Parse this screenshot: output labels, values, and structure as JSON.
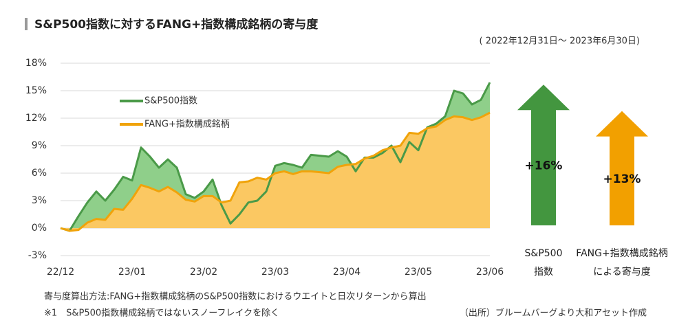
{
  "chart_data": [
    {
      "type": "line",
      "title": "S&P500指数に対するFANG+指数構成銘柄の寄与度",
      "subtitle": "( 2022年12月31日～ 2023年6月30日)",
      "categories": [
        "22/12",
        null,
        null,
        null,
        null,
        null,
        null,
        null,
        "23/01",
        null,
        null,
        null,
        null,
        null,
        null,
        null,
        "23/02",
        null,
        null,
        null,
        null,
        null,
        null,
        null,
        "23/03",
        null,
        null,
        null,
        null,
        null,
        null,
        null,
        "23/04",
        null,
        null,
        null,
        null,
        null,
        null,
        null,
        "23/05",
        null,
        null,
        null,
        null,
        null,
        null,
        null,
        "23/06"
      ],
      "series": [
        {
          "name": "S&P500指数",
          "color": "#4a9a48",
          "fill": "#8fcf8a",
          "values": [
            0,
            -0.3,
            1.3,
            2.8,
            4.0,
            3.0,
            4.2,
            5.6,
            5.2,
            8.8,
            7.8,
            6.6,
            7.5,
            6.6,
            3.7,
            3.3,
            4.0,
            5.3,
            2.5,
            0.5,
            1.5,
            2.8,
            3.0,
            4.0,
            6.8,
            7.1,
            6.9,
            6.6,
            8.0,
            7.9,
            7.8,
            8.4,
            7.8,
            6.2,
            7.7,
            7.7,
            8.2,
            9.0,
            7.2,
            9.4,
            8.5,
            11.0,
            11.4,
            12.2,
            15.0,
            14.7,
            13.5,
            14.0,
            15.9
          ]
        },
        {
          "name": "FANG+指数構成銘柄",
          "color": "#f0a30a",
          "fill": "#fbc862",
          "values": [
            0,
            -0.3,
            -0.2,
            0.6,
            1.0,
            0.9,
            2.1,
            2.0,
            3.2,
            4.7,
            4.4,
            4.0,
            4.5,
            3.9,
            3.1,
            2.9,
            3.5,
            3.5,
            2.8,
            3.0,
            5.0,
            5.1,
            5.5,
            5.3,
            6.0,
            6.2,
            5.9,
            6.2,
            6.2,
            6.1,
            6.0,
            6.7,
            6.9,
            7.0,
            7.6,
            7.9,
            8.5,
            8.8,
            9.0,
            10.4,
            10.3,
            10.9,
            11.1,
            11.8,
            12.2,
            12.1,
            11.8,
            12.1,
            12.6
          ]
        }
      ],
      "ylim": [
        -3,
        18
      ],
      "yticks": [
        {
          "value": -3,
          "label": "-3%"
        },
        {
          "value": 0,
          "label": "0%"
        },
        {
          "value": 3,
          "label": "3%"
        },
        {
          "value": 6,
          "label": "6%"
        },
        {
          "value": 9,
          "label": "9%"
        },
        {
          "value": 12,
          "label": "12%"
        },
        {
          "value": 15,
          "label": "15%"
        },
        {
          "value": 18,
          "label": "18%"
        }
      ],
      "grid": true,
      "legend": "upper left",
      "notes": [
        "寄与度算出方法:FANG+指数構成銘柄のS&P500指数におけるウエイトと日次リターンから算出",
        "※1　S&P500指数構成銘柄ではないスノーフレイクを除く"
      ],
      "source": "（出所）ブルームバーグより大和アセット作成"
    },
    {
      "type": "arrow",
      "categories": [
        "S&P500\n指数",
        "FANG+指数構成銘柄\nによる寄与度"
      ],
      "values": [
        16,
        13
      ],
      "value_labels": [
        "+16%",
        "+13%"
      ],
      "colors": [
        "#43963f",
        "#f2a000"
      ]
    }
  ]
}
